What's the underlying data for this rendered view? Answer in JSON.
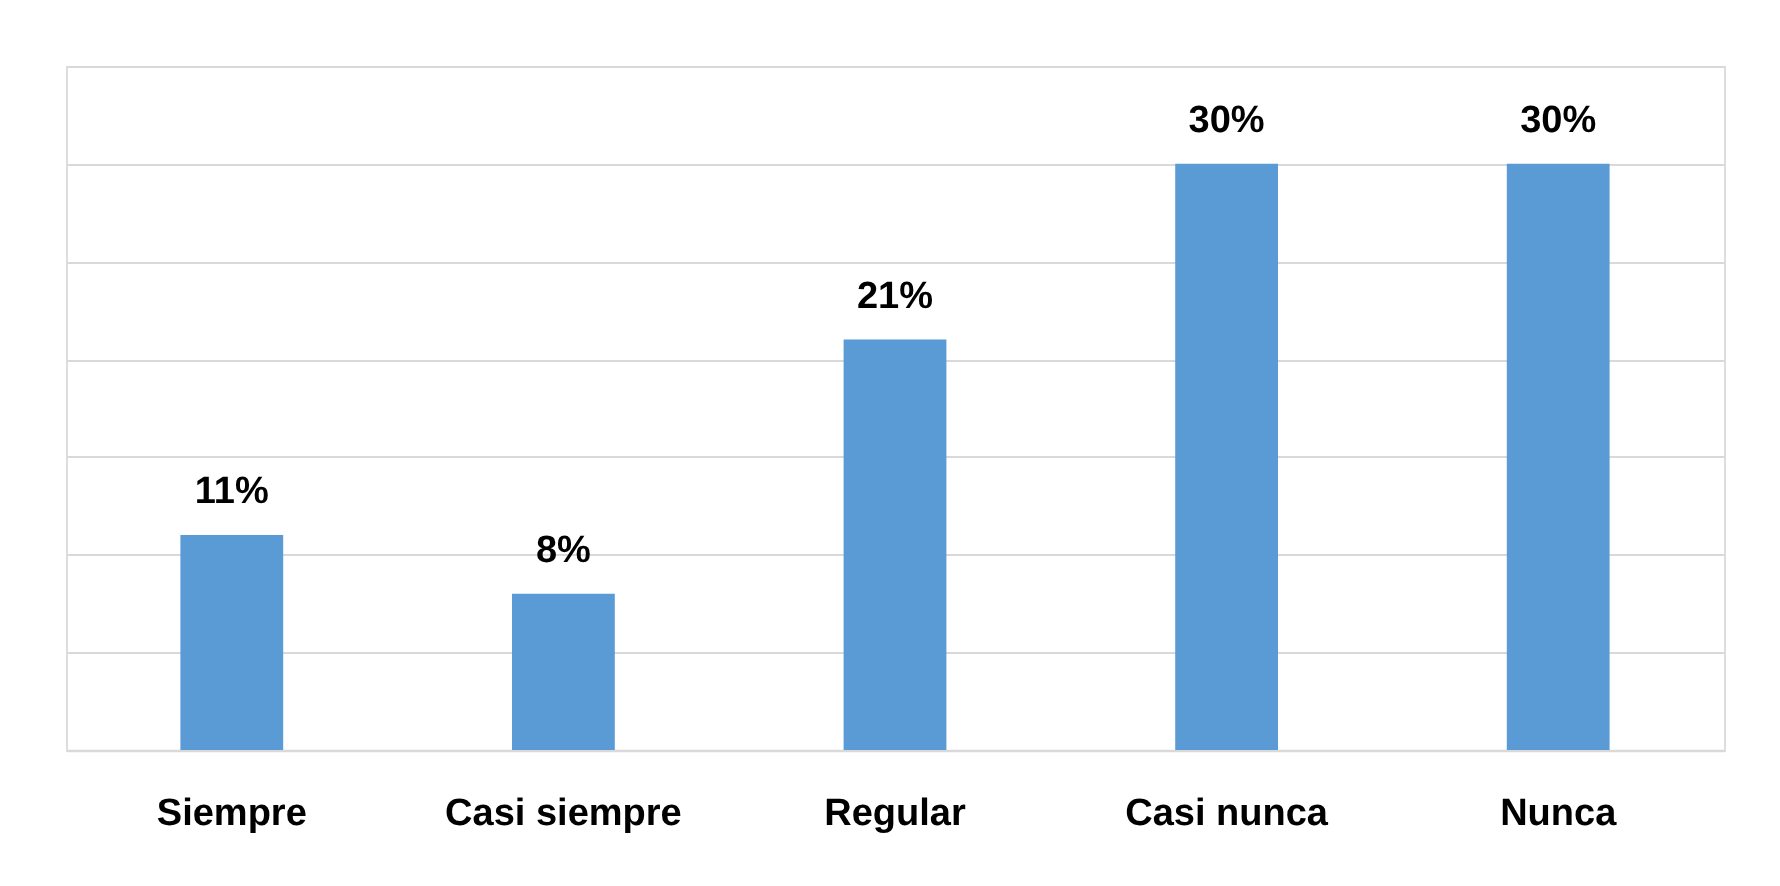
{
  "chart_data": {
    "type": "bar",
    "categories": [
      "Siempre",
      "Casi siempre",
      "Regular",
      "Casi nunca",
      "Nunca"
    ],
    "values": [
      11,
      8,
      21,
      30,
      30
    ],
    "value_labels": [
      "11%",
      "8%",
      "21%",
      "30%",
      "30%"
    ],
    "color": "#5b9bd5",
    "ylim": [
      0,
      35
    ],
    "yticks": [
      {
        "value": 0,
        "label": null
      },
      {
        "value": 5,
        "label": null
      },
      {
        "value": 10,
        "label": null
      },
      {
        "value": 15,
        "label": null
      },
      {
        "value": 20,
        "label": null
      },
      {
        "value": 25,
        "label": null
      },
      {
        "value": 30,
        "label": null
      },
      {
        "value": 35,
        "label": null
      }
    ],
    "grid": "y",
    "tick_labels": "x"
  }
}
